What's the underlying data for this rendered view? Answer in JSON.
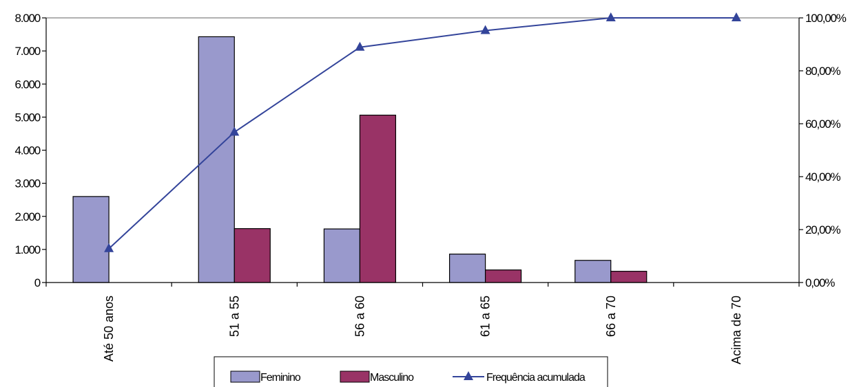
{
  "chart_data": {
    "type": "bar",
    "categories": [
      "Até 50 anos",
      "51  a  55",
      "56 a 60",
      "61 a 65",
      "66 a 70",
      "Acima de 70"
    ],
    "series": [
      {
        "name": "Feminino",
        "type": "bar",
        "axis": "left",
        "color": "#9999cc",
        "values": [
          2600,
          7430,
          1620,
          860,
          670,
          0
        ]
      },
      {
        "name": "Masculino",
        "type": "bar",
        "axis": "right-none",
        "color": "#993366",
        "values": [
          0,
          1630,
          5060,
          380,
          340,
          0
        ]
      },
      {
        "name": "Frequência acumulada",
        "type": "line",
        "axis": "right",
        "color": "#33449a",
        "marker": "triangle",
        "values": [
          12.8,
          56.8,
          88.9,
          95.2,
          100,
          100
        ]
      }
    ],
    "y_left": {
      "min": 0,
      "max": 8000,
      "ticks": [
        "0",
        "1.000",
        "2.000",
        "3.000",
        "4.000",
        "5.000",
        "6.000",
        "7.000",
        "8.000"
      ]
    },
    "y_right": {
      "min": 0,
      "max": 100,
      "ticks": [
        "0,00%",
        "20,00%",
        "40,00%",
        "60,00%",
        "80,00%",
        "100,00%"
      ]
    },
    "grid": false,
    "legend_position": "bottom"
  }
}
